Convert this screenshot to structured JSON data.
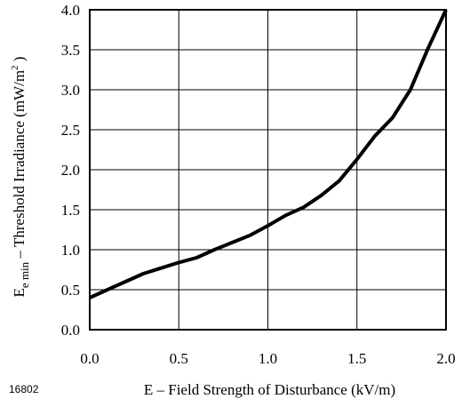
{
  "chart_data": {
    "type": "line",
    "title": "",
    "xlabel": "E – Field Strength of Disturbance (kV/m)",
    "ylabel": {
      "main": "E",
      "sub": "e min",
      "rest": " – Threshold Irradiance (mW/m",
      "sup": "2",
      "end": " )"
    },
    "xlim": [
      0.0,
      2.0
    ],
    "ylim": [
      0.0,
      4.0
    ],
    "xticks": [
      "0.0",
      "0.5",
      "1.0",
      "1.5",
      "2.0"
    ],
    "yticks": [
      "0.0",
      "0.5",
      "1.0",
      "1.5",
      "2.0",
      "2.5",
      "3.0",
      "3.5",
      "4.0"
    ],
    "grid": true,
    "series": [
      {
        "color": "#000000",
        "x": [
          0.0,
          0.1,
          0.2,
          0.3,
          0.4,
          0.5,
          0.6,
          0.7,
          0.8,
          0.9,
          1.0,
          1.1,
          1.2,
          1.3,
          1.4,
          1.5,
          1.6,
          1.7,
          1.8,
          1.9,
          2.0
        ],
        "y": [
          0.4,
          0.5,
          0.6,
          0.7,
          0.77,
          0.84,
          0.9,
          1.0,
          1.09,
          1.18,
          1.3,
          1.43,
          1.53,
          1.68,
          1.86,
          2.13,
          2.42,
          2.65,
          3.0,
          3.52,
          4.0
        ]
      }
    ]
  },
  "figure_id": "16802"
}
